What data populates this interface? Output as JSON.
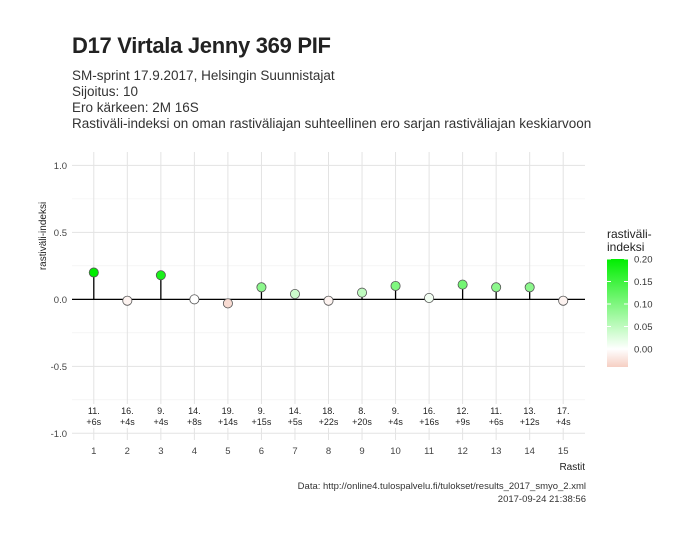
{
  "header": {
    "title": "D17 Virtala Jenny 369 PIF",
    "subtitle_lines": [
      "SM-sprint 17.9.2017, Helsingin Suunnistajat",
      "Sijoitus: 10",
      "Ero kärkeen: 2M 16S",
      "Rastiväli-indeksi on oman rastiväliajan suhteellinen ero sarjan rastiväliajan keskiarvoon"
    ]
  },
  "footer": {
    "source": "Data: http://online4.tulospalvelu.fi/tulokset/results_2017_smyo_2.xml",
    "timestamp": "2017-09-24 21:38:56"
  },
  "chart_data": {
    "type": "scatter",
    "xlabel": "Rastit",
    "ylabel": "rastiväli-indeksi",
    "xlim": [
      0.35,
      15.65
    ],
    "ylim": [
      -1.05,
      1.1
    ],
    "x_ticks": [
      1,
      2,
      3,
      4,
      5,
      6,
      7,
      8,
      9,
      10,
      11,
      12,
      13,
      14,
      15
    ],
    "y_ticks": [
      -1.0,
      -0.5,
      0.0,
      0.5,
      1.0
    ],
    "y_tick_labels": [
      "-1.0",
      "-0.5",
      "0.0",
      "0.5",
      "1.0"
    ],
    "grid": true,
    "x": [
      1,
      2,
      3,
      4,
      5,
      6,
      7,
      8,
      9,
      10,
      11,
      12,
      13,
      14,
      15
    ],
    "values": [
      0.2,
      -0.01,
      0.18,
      0.0,
      -0.03,
      0.09,
      0.04,
      -0.01,
      0.05,
      0.1,
      0.01,
      0.11,
      0.09,
      0.09,
      -0.01
    ],
    "annotations": [
      [
        "11.",
        "+6s"
      ],
      [
        "16.",
        "+4s"
      ],
      [
        "9.",
        "+4s"
      ],
      [
        "14.",
        "+8s"
      ],
      [
        "19.",
        "+14s"
      ],
      [
        "9.",
        "+15s"
      ],
      [
        "14.",
        "+5s"
      ],
      [
        "18.",
        "+22s"
      ],
      [
        "8.",
        "+20s"
      ],
      [
        "9.",
        "+4s"
      ],
      [
        "16.",
        "+16s"
      ],
      [
        "12.",
        "+9s"
      ],
      [
        "11.",
        "+6s"
      ],
      [
        "13.",
        "+12s"
      ],
      [
        "17.",
        "+4s"
      ]
    ],
    "legend": {
      "title_lines": [
        "rastiväli-",
        "indeksi"
      ],
      "position": "right",
      "labels": [
        "0.20",
        "0.15",
        "0.10",
        "0.05",
        "0.00"
      ],
      "label_values": [
        0.2,
        0.15,
        0.1,
        0.05,
        0.0
      ],
      "range": [
        -0.04,
        0.2
      ]
    },
    "colors": {
      "high": "#00ee00",
      "mid": "#ffffff",
      "low": "#f6cfc3",
      "point_outline": "#555555",
      "grid": "#e3e3e3",
      "zero_line": "#000000"
    }
  }
}
